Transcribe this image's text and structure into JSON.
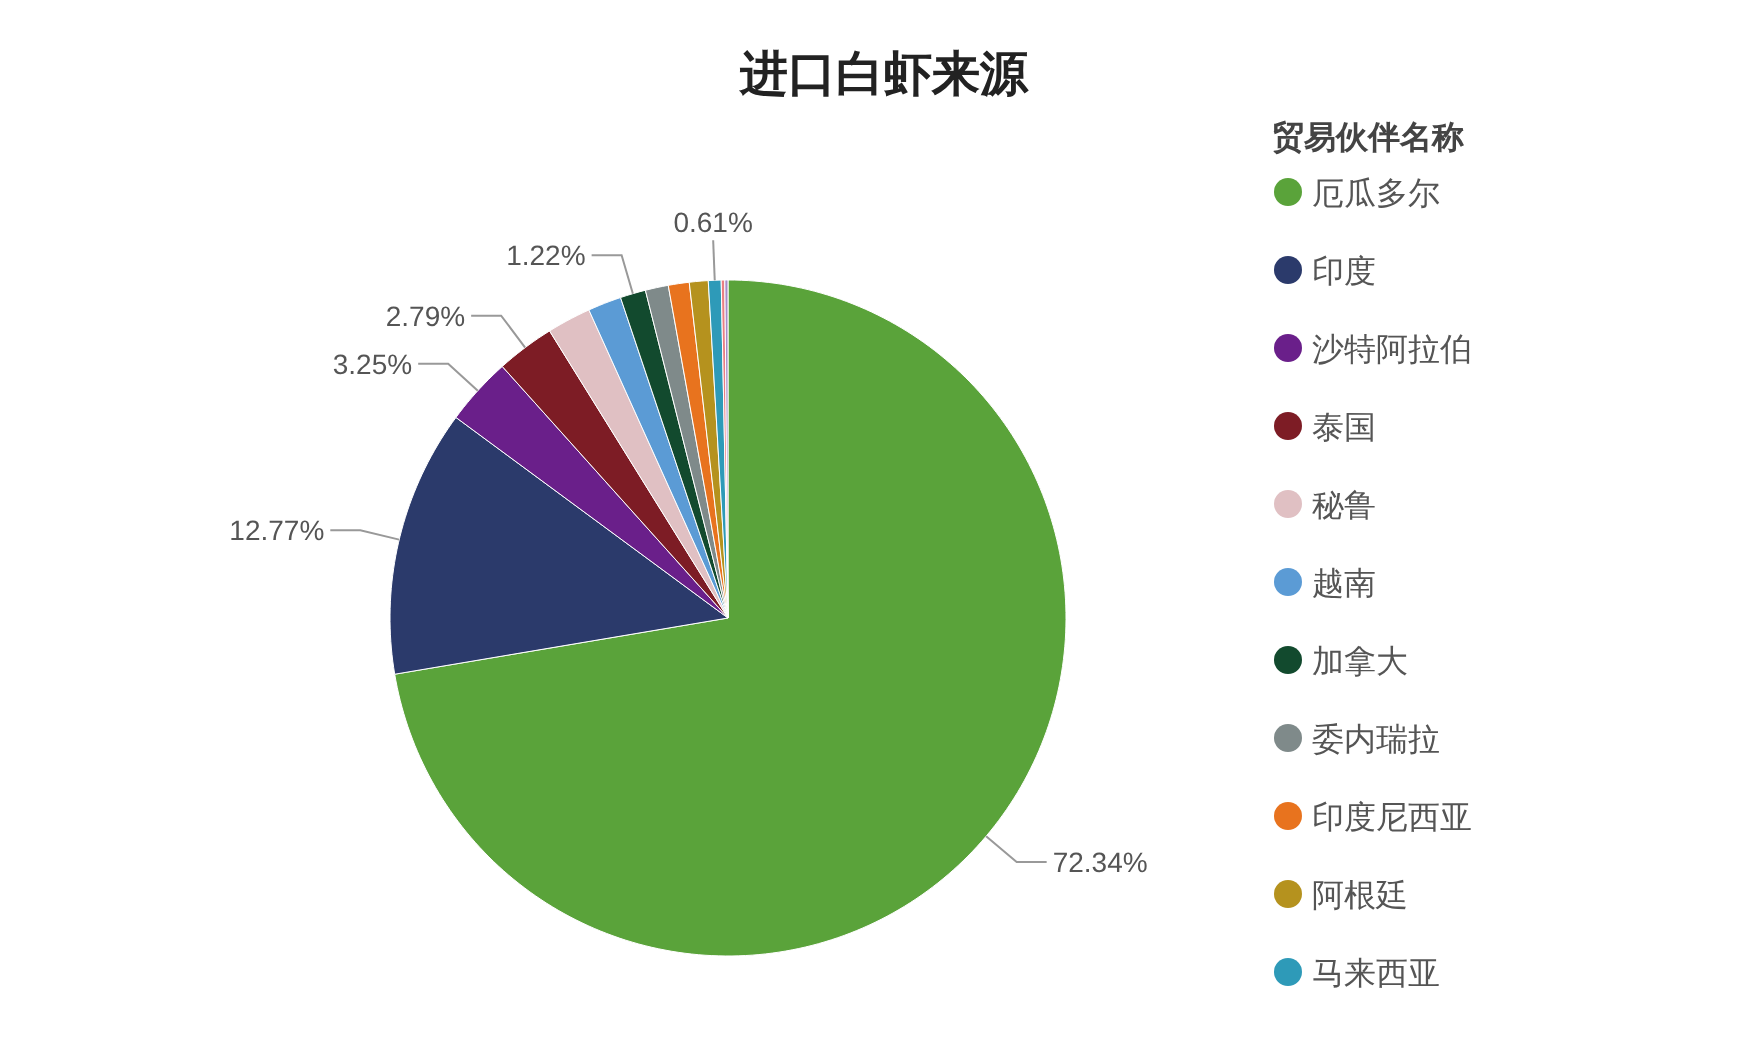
{
  "chart_data": {
    "type": "pie",
    "title": "进口白虾来源",
    "legend_title": "贸易伙伴名称",
    "legend": "right",
    "categories": [
      "厄瓜多尔",
      "印度",
      "沙特阿拉伯",
      "泰国",
      "秘鲁",
      "越南",
      "加拿大",
      "委内瑞拉",
      "印度尼西亚",
      "阿根廷",
      "马来西亚",
      null,
      null
    ],
    "values": [
      72.34,
      12.77,
      3.25,
      2.79,
      2.1,
      1.6,
      1.22,
      1.1,
      1.0,
      0.9,
      0.61,
      0.17,
      0.15
    ],
    "colors": [
      "#5aa33a",
      "#2b3a6b",
      "#6a1f8a",
      "#7d1c25",
      "#e0c0c3",
      "#5b9bd5",
      "#124a2e",
      "#7f8a8a",
      "#e8731e",
      "#b5921e",
      "#2e9ab8",
      "#e97f83",
      "#a88bc8"
    ],
    "value_labels": [
      "72.34%",
      "12.77%",
      "3.25%",
      "2.79%",
      null,
      null,
      "1.22%",
      null,
      null,
      null,
      "0.61%",
      null,
      null
    ]
  }
}
